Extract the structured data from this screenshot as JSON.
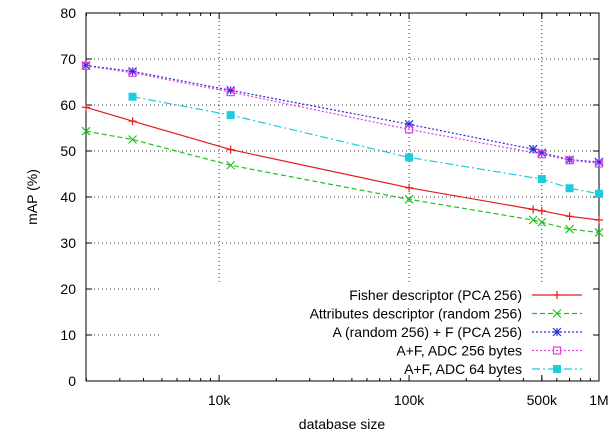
{
  "chart_data": {
    "type": "line",
    "title": "",
    "xlabel": "database size",
    "ylabel": "mAP (%)",
    "xscale": "log",
    "xlim": [
      1991,
      1000000
    ],
    "ylim": [
      0,
      80
    ],
    "x_ticks": [
      {
        "value": 10000,
        "label": "10k"
      },
      {
        "value": 100000,
        "label": "100k"
      },
      {
        "value": 500000,
        "label": "500k"
      },
      {
        "value": 1000000,
        "label": "1M"
      }
    ],
    "y_ticks": [
      {
        "value": 0,
        "label": "0"
      },
      {
        "value": 10,
        "label": "10"
      },
      {
        "value": 20,
        "label": "20"
      },
      {
        "value": 30,
        "label": "30"
      },
      {
        "value": 40,
        "label": "40"
      },
      {
        "value": 50,
        "label": "50"
      },
      {
        "value": 60,
        "label": "60"
      },
      {
        "value": 70,
        "label": "70"
      },
      {
        "value": 80,
        "label": "80"
      }
    ],
    "grid": true,
    "legend_position": "bottom-right",
    "series": [
      {
        "name": "Fisher descriptor (PCA 256)",
        "color": "#e41a1c",
        "dash": "solid",
        "marker": "plus",
        "points": [
          {
            "x": 1991,
            "y": 59.5
          },
          {
            "x": 3500,
            "y": 56.5
          },
          {
            "x": 11500,
            "y": 50.3
          },
          {
            "x": 100000,
            "y": 42.0
          },
          {
            "x": 450000,
            "y": 37.3
          },
          {
            "x": 500000,
            "y": 37.0
          },
          {
            "x": 700000,
            "y": 35.8
          },
          {
            "x": 1000000,
            "y": 35.0
          }
        ]
      },
      {
        "name": "Attributes descriptor (random 256)",
        "color": "#21c021",
        "dash": "dashed",
        "marker": "x",
        "points": [
          {
            "x": 1991,
            "y": 54.3
          },
          {
            "x": 3500,
            "y": 52.5
          },
          {
            "x": 11500,
            "y": 46.9
          },
          {
            "x": 100000,
            "y": 39.5
          },
          {
            "x": 450000,
            "y": 35.0
          },
          {
            "x": 500000,
            "y": 34.5
          },
          {
            "x": 700000,
            "y": 33.0
          },
          {
            "x": 1000000,
            "y": 32.3
          }
        ]
      },
      {
        "name": "A (random 256) + F (PCA 256)",
        "color": "#2b2bdc",
        "dash": "dotted",
        "marker": "star",
        "points": [
          {
            "x": 1991,
            "y": 68.6
          },
          {
            "x": 3500,
            "y": 67.3
          },
          {
            "x": 11500,
            "y": 63.2
          },
          {
            "x": 100000,
            "y": 55.8
          },
          {
            "x": 450000,
            "y": 50.4
          },
          {
            "x": 500000,
            "y": 49.6
          },
          {
            "x": 700000,
            "y": 48.1
          },
          {
            "x": 1000000,
            "y": 47.6
          }
        ]
      },
      {
        "name": "A+F, ADC 256 bytes",
        "color": "#dd44dd",
        "dash": "dotted",
        "marker": "square-open",
        "points": [
          {
            "x": 1991,
            "y": 68.5
          },
          {
            "x": 3500,
            "y": 67.0
          },
          {
            "x": 11500,
            "y": 62.8
          },
          {
            "x": 100000,
            "y": 54.7
          },
          {
            "x": 500000,
            "y": 49.3
          },
          {
            "x": 700000,
            "y": 48.0
          },
          {
            "x": 1000000,
            "y": 47.3
          }
        ]
      },
      {
        "name": "A+F, ADC 64 bytes",
        "color": "#1ccbdc",
        "dash": "dashdot",
        "marker": "square-filled",
        "points": [
          {
            "x": 3500,
            "y": 61.8
          },
          {
            "x": 11500,
            "y": 57.8
          },
          {
            "x": 100000,
            "y": 48.6
          },
          {
            "x": 500000,
            "y": 43.9
          },
          {
            "x": 700000,
            "y": 41.9
          },
          {
            "x": 1000000,
            "y": 40.7
          }
        ]
      }
    ]
  }
}
